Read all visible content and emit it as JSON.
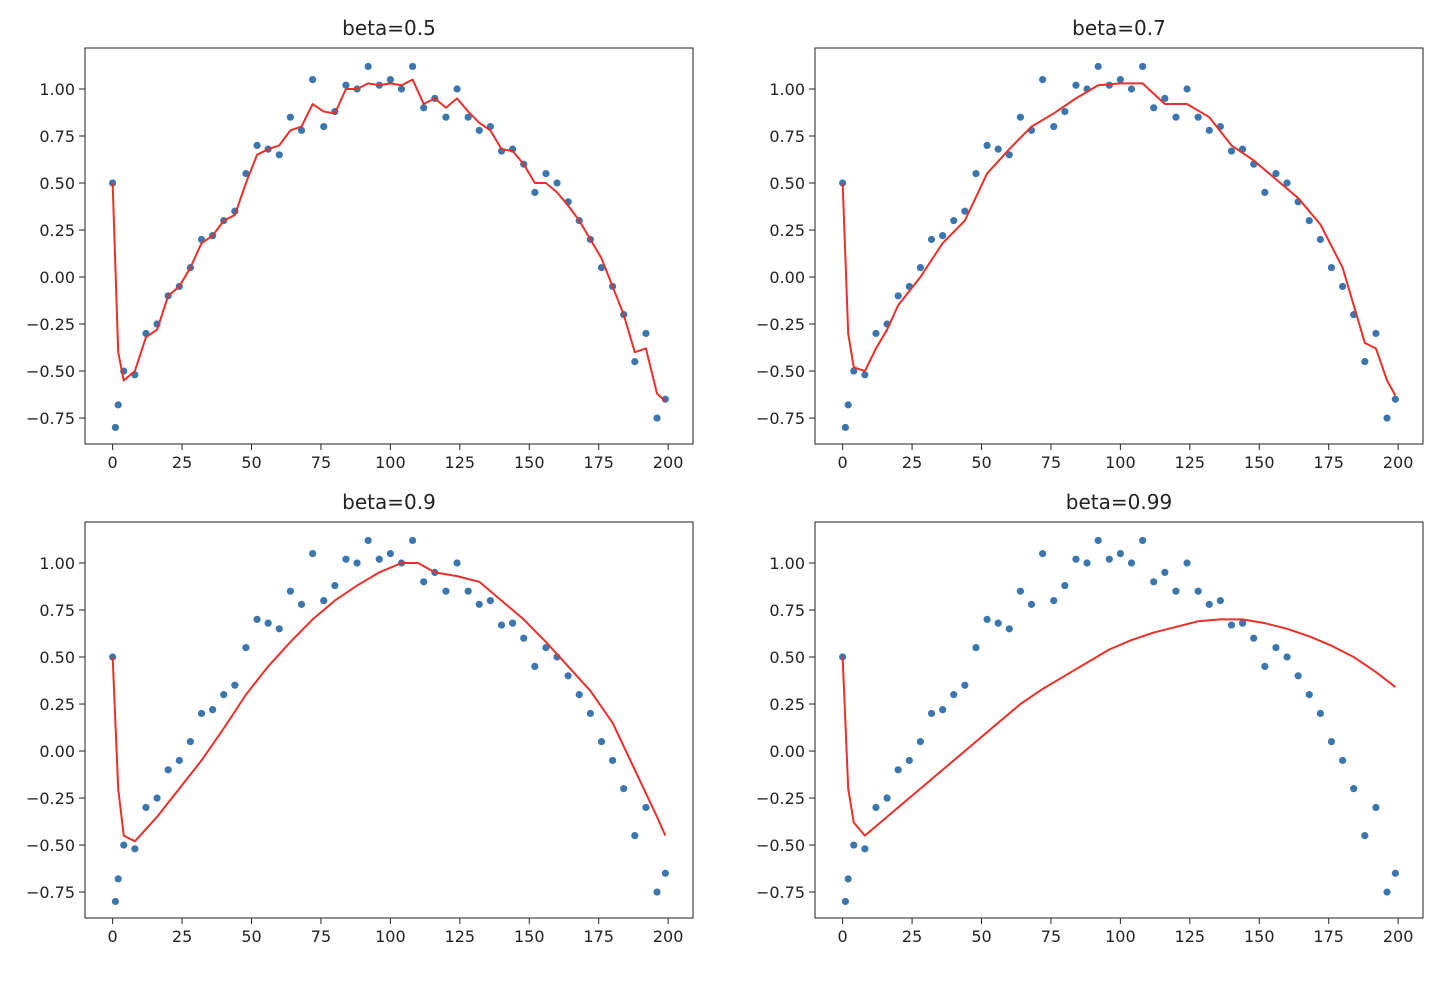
{
  "chart_data": [
    {
      "type": "scatter",
      "title": "beta=0.5",
      "xlim": [
        -9.95,
        208.95
      ],
      "ylim": [
        -0.888,
        1.218
      ],
      "xticks": [
        0,
        25,
        50,
        75,
        100,
        125,
        150,
        175,
        200
      ],
      "yticks": [
        {
          "value": -0.75,
          "label": "−0.75"
        },
        {
          "value": -0.5,
          "label": "−0.50"
        },
        {
          "value": -0.25,
          "label": "−0.25"
        },
        {
          "value": 0,
          "label": "0.00"
        },
        {
          "value": 0.25,
          "label": "0.25"
        },
        {
          "value": 0.5,
          "label": "0.50"
        },
        {
          "value": 0.75,
          "label": "0.75"
        },
        {
          "value": 1,
          "label": "1.00"
        }
      ],
      "series": [
        {
          "kind": "markers",
          "color": "#3b76af",
          "x": [
            0,
            1,
            2,
            4,
            8,
            12,
            16,
            20,
            24,
            28,
            32,
            36,
            40,
            44,
            48,
            52,
            56,
            60,
            64,
            68,
            72,
            76,
            80,
            84,
            88,
            92,
            96,
            100,
            104,
            108,
            112,
            116,
            120,
            124,
            128,
            132,
            136,
            140,
            144,
            148,
            152,
            156,
            160,
            164,
            168,
            172,
            176,
            180,
            184,
            188,
            192,
            196,
            199
          ],
          "values": [
            0.5,
            -0.8,
            -0.68,
            -0.5,
            -0.52,
            -0.3,
            -0.25,
            -0.1,
            -0.05,
            0.05,
            0.2,
            0.22,
            0.3,
            0.35,
            0.55,
            0.7,
            0.68,
            0.65,
            0.85,
            0.78,
            1.05,
            0.8,
            0.88,
            1.02,
            1.0,
            1.12,
            1.02,
            1.05,
            1.0,
            1.12,
            0.9,
            0.95,
            0.85,
            1.0,
            0.85,
            0.78,
            0.8,
            0.67,
            0.68,
            0.6,
            0.45,
            0.55,
            0.5,
            0.4,
            0.3,
            0.2,
            0.05,
            -0.05,
            -0.2,
            -0.45,
            -0.3,
            -0.75,
            -0.65
          ]
        },
        {
          "kind": "line",
          "color": "#e8302a",
          "x": [
            0,
            2,
            4,
            8,
            12,
            16,
            20,
            24,
            28,
            32,
            36,
            40,
            44,
            48,
            52,
            56,
            60,
            64,
            68,
            72,
            76,
            80,
            84,
            88,
            92,
            96,
            100,
            104,
            108,
            112,
            116,
            120,
            124,
            128,
            132,
            136,
            140,
            144,
            148,
            152,
            156,
            160,
            164,
            168,
            172,
            176,
            180,
            184,
            188,
            192,
            196,
            199
          ],
          "values": [
            0.5,
            -0.4,
            -0.55,
            -0.5,
            -0.32,
            -0.28,
            -0.1,
            -0.05,
            0.05,
            0.18,
            0.22,
            0.3,
            0.33,
            0.5,
            0.65,
            0.68,
            0.7,
            0.78,
            0.8,
            0.92,
            0.88,
            0.87,
            1.0,
            1.0,
            1.03,
            1.02,
            1.03,
            1.02,
            1.05,
            0.92,
            0.95,
            0.9,
            0.95,
            0.88,
            0.82,
            0.78,
            0.68,
            0.67,
            0.6,
            0.5,
            0.5,
            0.45,
            0.38,
            0.3,
            0.2,
            0.1,
            -0.05,
            -0.2,
            -0.4,
            -0.38,
            -0.62,
            -0.66
          ]
        }
      ]
    },
    {
      "type": "scatter",
      "title": "beta=0.7",
      "xlim": [
        -9.95,
        208.95
      ],
      "ylim": [
        -0.888,
        1.218
      ],
      "xticks": [
        0,
        25,
        50,
        75,
        100,
        125,
        150,
        175,
        200
      ],
      "yticks": [
        {
          "value": -0.75,
          "label": "−0.75"
        },
        {
          "value": -0.5,
          "label": "−0.50"
        },
        {
          "value": -0.25,
          "label": "−0.25"
        },
        {
          "value": 0,
          "label": "0.00"
        },
        {
          "value": 0.25,
          "label": "0.25"
        },
        {
          "value": 0.5,
          "label": "0.50"
        },
        {
          "value": 0.75,
          "label": "0.75"
        },
        {
          "value": 1,
          "label": "1.00"
        }
      ],
      "series": [
        {
          "kind": "markers",
          "color": "#3b76af",
          "x": [
            0,
            1,
            2,
            4,
            8,
            12,
            16,
            20,
            24,
            28,
            32,
            36,
            40,
            44,
            48,
            52,
            56,
            60,
            64,
            68,
            72,
            76,
            80,
            84,
            88,
            92,
            96,
            100,
            104,
            108,
            112,
            116,
            120,
            124,
            128,
            132,
            136,
            140,
            144,
            148,
            152,
            156,
            160,
            164,
            168,
            172,
            176,
            180,
            184,
            188,
            192,
            196,
            199
          ],
          "values": [
            0.5,
            -0.8,
            -0.68,
            -0.5,
            -0.52,
            -0.3,
            -0.25,
            -0.1,
            -0.05,
            0.05,
            0.2,
            0.22,
            0.3,
            0.35,
            0.55,
            0.7,
            0.68,
            0.65,
            0.85,
            0.78,
            1.05,
            0.8,
            0.88,
            1.02,
            1.0,
            1.12,
            1.02,
            1.05,
            1.0,
            1.12,
            0.9,
            0.95,
            0.85,
            1.0,
            0.85,
            0.78,
            0.8,
            0.67,
            0.68,
            0.6,
            0.45,
            0.55,
            0.5,
            0.4,
            0.3,
            0.2,
            0.05,
            -0.05,
            -0.2,
            -0.45,
            -0.3,
            -0.75,
            -0.65
          ]
        },
        {
          "kind": "line",
          "color": "#e8302a",
          "x": [
            0,
            2,
            4,
            8,
            12,
            16,
            20,
            28,
            36,
            44,
            52,
            60,
            68,
            76,
            84,
            92,
            100,
            108,
            116,
            124,
            132,
            140,
            148,
            156,
            164,
            172,
            180,
            188,
            192,
            196,
            199
          ],
          "values": [
            0.5,
            -0.3,
            -0.48,
            -0.5,
            -0.38,
            -0.28,
            -0.15,
            0.0,
            0.18,
            0.3,
            0.55,
            0.68,
            0.8,
            0.87,
            0.95,
            1.02,
            1.03,
            1.03,
            0.92,
            0.92,
            0.85,
            0.7,
            0.62,
            0.52,
            0.42,
            0.28,
            0.05,
            -0.35,
            -0.38,
            -0.55,
            -0.63
          ]
        }
      ]
    },
    {
      "type": "scatter",
      "title": "beta=0.9",
      "xlim": [
        -9.95,
        208.95
      ],
      "ylim": [
        -0.888,
        1.218
      ],
      "xticks": [
        0,
        25,
        50,
        75,
        100,
        125,
        150,
        175,
        200
      ],
      "yticks": [
        {
          "value": -0.75,
          "label": "−0.75"
        },
        {
          "value": -0.5,
          "label": "−0.50"
        },
        {
          "value": -0.25,
          "label": "−0.25"
        },
        {
          "value": 0,
          "label": "0.00"
        },
        {
          "value": 0.25,
          "label": "0.25"
        },
        {
          "value": 0.5,
          "label": "0.50"
        },
        {
          "value": 0.75,
          "label": "0.75"
        },
        {
          "value": 1,
          "label": "1.00"
        }
      ],
      "series": [
        {
          "kind": "markers",
          "color": "#3b76af",
          "x": [
            0,
            1,
            2,
            4,
            8,
            12,
            16,
            20,
            24,
            28,
            32,
            36,
            40,
            44,
            48,
            52,
            56,
            60,
            64,
            68,
            72,
            76,
            80,
            84,
            88,
            92,
            96,
            100,
            104,
            108,
            112,
            116,
            120,
            124,
            128,
            132,
            136,
            140,
            144,
            148,
            152,
            156,
            160,
            164,
            168,
            172,
            176,
            180,
            184,
            188,
            192,
            196,
            199
          ],
          "values": [
            0.5,
            -0.8,
            -0.68,
            -0.5,
            -0.52,
            -0.3,
            -0.25,
            -0.1,
            -0.05,
            0.05,
            0.2,
            0.22,
            0.3,
            0.35,
            0.55,
            0.7,
            0.68,
            0.65,
            0.85,
            0.78,
            1.05,
            0.8,
            0.88,
            1.02,
            1.0,
            1.12,
            1.02,
            1.05,
            1.0,
            1.12,
            0.9,
            0.95,
            0.85,
            1.0,
            0.85,
            0.78,
            0.8,
            0.67,
            0.68,
            0.6,
            0.45,
            0.55,
            0.5,
            0.4,
            0.3,
            0.2,
            0.05,
            -0.05,
            -0.2,
            -0.45,
            -0.3,
            -0.75,
            -0.65
          ]
        },
        {
          "kind": "line",
          "color": "#e8302a",
          "x": [
            0,
            2,
            4,
            8,
            16,
            24,
            32,
            40,
            48,
            56,
            64,
            72,
            80,
            88,
            96,
            104,
            110,
            116,
            124,
            132,
            140,
            148,
            156,
            164,
            172,
            180,
            188,
            196,
            199
          ],
          "values": [
            0.5,
            -0.2,
            -0.45,
            -0.48,
            -0.35,
            -0.2,
            -0.05,
            0.12,
            0.3,
            0.45,
            0.58,
            0.7,
            0.8,
            0.88,
            0.95,
            1.0,
            1.0,
            0.95,
            0.93,
            0.9,
            0.8,
            0.7,
            0.58,
            0.45,
            0.32,
            0.15,
            -0.1,
            -0.35,
            -0.45
          ]
        }
      ]
    },
    {
      "type": "scatter",
      "title": "beta=0.99",
      "xlim": [
        -9.95,
        208.95
      ],
      "ylim": [
        -0.888,
        1.218
      ],
      "xticks": [
        0,
        25,
        50,
        75,
        100,
        125,
        150,
        175,
        200
      ],
      "yticks": [
        {
          "value": -0.75,
          "label": "−0.75"
        },
        {
          "value": -0.5,
          "label": "−0.50"
        },
        {
          "value": -0.25,
          "label": "−0.25"
        },
        {
          "value": 0,
          "label": "0.00"
        },
        {
          "value": 0.25,
          "label": "0.25"
        },
        {
          "value": 0.5,
          "label": "0.50"
        },
        {
          "value": 0.75,
          "label": "0.75"
        },
        {
          "value": 1,
          "label": "1.00"
        }
      ],
      "series": [
        {
          "kind": "markers",
          "color": "#3b76af",
          "x": [
            0,
            1,
            2,
            4,
            8,
            12,
            16,
            20,
            24,
            28,
            32,
            36,
            40,
            44,
            48,
            52,
            56,
            60,
            64,
            68,
            72,
            76,
            80,
            84,
            88,
            92,
            96,
            100,
            104,
            108,
            112,
            116,
            120,
            124,
            128,
            132,
            136,
            140,
            144,
            148,
            152,
            156,
            160,
            164,
            168,
            172,
            176,
            180,
            184,
            188,
            192,
            196,
            199
          ],
          "values": [
            0.5,
            -0.8,
            -0.68,
            -0.5,
            -0.52,
            -0.3,
            -0.25,
            -0.1,
            -0.05,
            0.05,
            0.2,
            0.22,
            0.3,
            0.35,
            0.55,
            0.7,
            0.68,
            0.65,
            0.85,
            0.78,
            1.05,
            0.8,
            0.88,
            1.02,
            1.0,
            1.12,
            1.02,
            1.05,
            1.0,
            1.12,
            0.9,
            0.95,
            0.85,
            1.0,
            0.85,
            0.78,
            0.8,
            0.67,
            0.68,
            0.6,
            0.45,
            0.55,
            0.5,
            0.4,
            0.3,
            0.2,
            0.05,
            -0.05,
            -0.2,
            -0.45,
            -0.3,
            -0.75,
            -0.65
          ]
        },
        {
          "kind": "line",
          "color": "#e8302a",
          "x": [
            0,
            2,
            4,
            8,
            16,
            24,
            32,
            40,
            48,
            56,
            64,
            72,
            80,
            88,
            96,
            104,
            112,
            120,
            128,
            136,
            144,
            152,
            160,
            168,
            176,
            184,
            192,
            199
          ],
          "values": [
            0.5,
            -0.2,
            -0.38,
            -0.45,
            -0.35,
            -0.25,
            -0.15,
            -0.05,
            0.05,
            0.15,
            0.25,
            0.33,
            0.4,
            0.47,
            0.54,
            0.59,
            0.63,
            0.66,
            0.69,
            0.7,
            0.7,
            0.68,
            0.65,
            0.61,
            0.56,
            0.5,
            0.42,
            0.34
          ]
        }
      ]
    }
  ]
}
